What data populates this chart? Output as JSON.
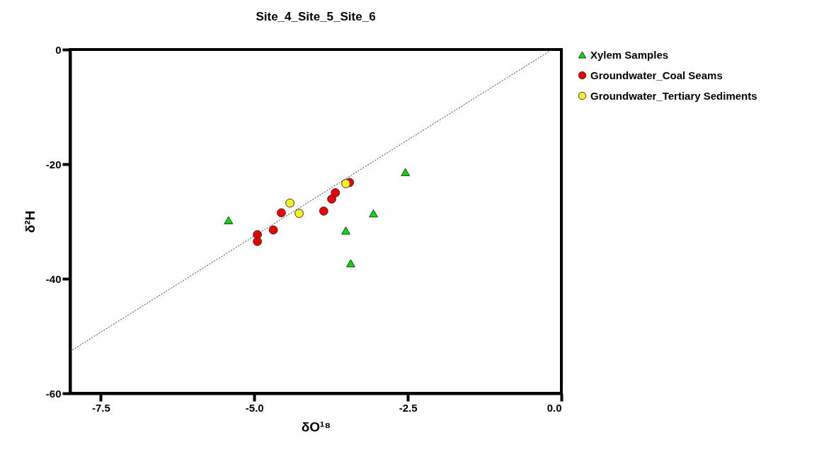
{
  "chart_data": {
    "type": "scatter",
    "title": "Site_4_Site_5_Site_6",
    "xlabel": "δO¹⁸",
    "ylabel": "δ²H",
    "xlim": [
      -8,
      0
    ],
    "ylim": [
      -60,
      0
    ],
    "xticks": [
      {
        "value": -7.5,
        "label": "-7.5"
      },
      {
        "value": -5,
        "label": "-5.0"
      },
      {
        "value": -2.5,
        "label": "-2.5"
      },
      {
        "value": 0,
        "label": "0.0"
      }
    ],
    "yticks": [
      -60,
      -40,
      -20,
      0
    ],
    "grid": false,
    "legend": "top right",
    "series": [
      {
        "name": "Xylem Samples",
        "color": "#00dd00",
        "marker": "triangle",
        "x": [
          -5.42,
          -3.51,
          -3.43,
          -3.06,
          -2.54
        ],
        "values": [
          -29.8,
          -31.6,
          -37.3,
          -28.6,
          -21.4
        ]
      },
      {
        "name": "Groundwater_Coal Seams",
        "color": "#ee0000",
        "marker": "circle",
        "x": [
          -4.95,
          -4.95,
          -4.69,
          -4.56,
          -3.87,
          -3.74,
          -3.68,
          -3.45
        ],
        "values": [
          -32.3,
          -33.5,
          -31.5,
          -28.5,
          -28.2,
          -26.1,
          -25.0,
          -23.2
        ]
      },
      {
        "name": "Groundwater_Tertiary Sediments",
        "color": "#f5f020",
        "marker": "circle",
        "x": [
          -4.42,
          -4.27,
          -3.51
        ],
        "values": [
          -26.8,
          -28.6,
          -23.4
        ]
      },
      {
        "type": "line",
        "color": "#333333",
        "line_style": "dotted",
        "x": [
          -8,
          -0.15
        ],
        "values": [
          -52.7,
          0
        ]
      }
    ]
  }
}
